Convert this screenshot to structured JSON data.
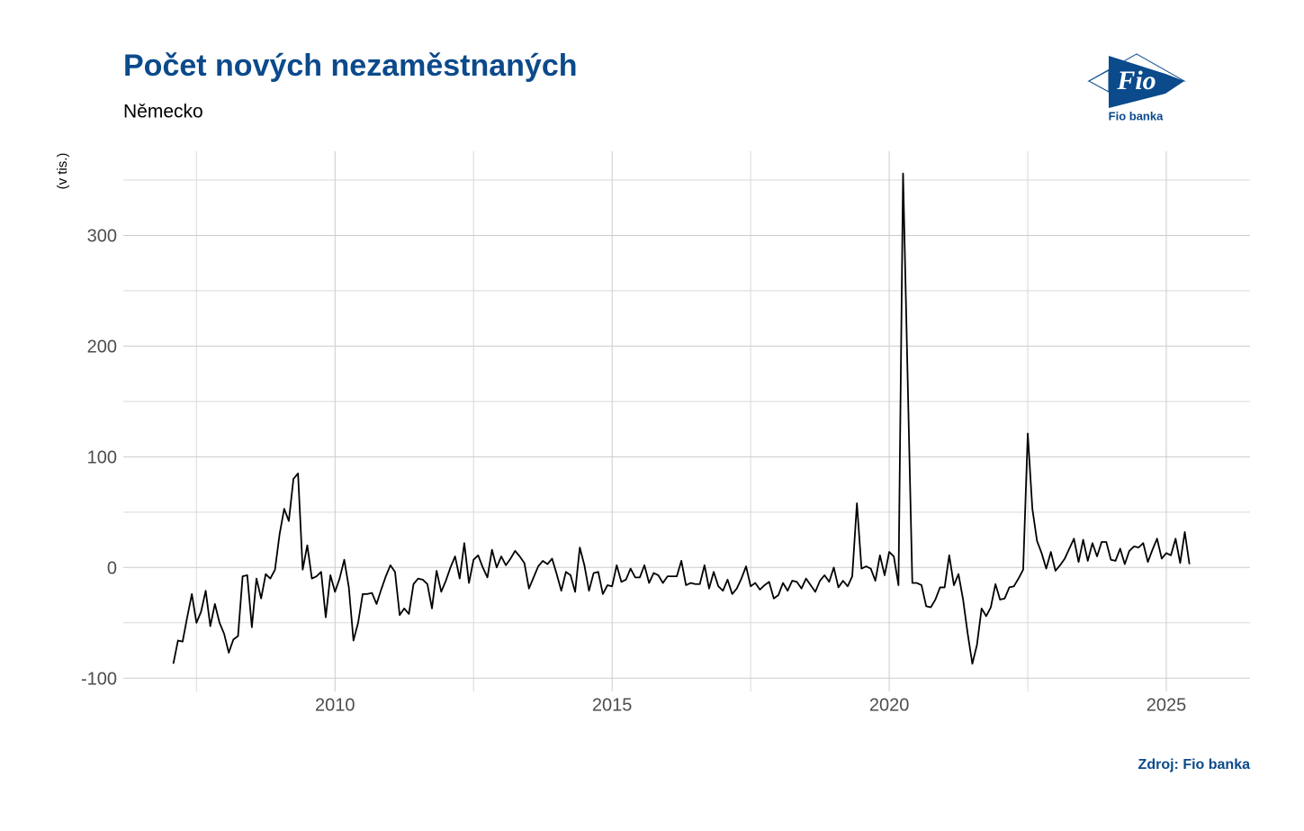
{
  "chart_data": {
    "type": "line",
    "title": "Počet nových nezaměstnaných",
    "subtitle": "Německo",
    "y_label": "(v tis.)",
    "source": "Zdroj: Fio banka",
    "color": "#000000",
    "grid": true,
    "xlim": [
      2006.18,
      2026.51
    ],
    "ylim": [
      -112,
      376
    ],
    "xticks": [
      2010,
      2015,
      2020,
      2025
    ],
    "xminorticks": [
      2007.5,
      2012.5,
      2017.5,
      2022.5
    ],
    "yticks": [
      -100,
      0,
      100,
      200,
      300
    ],
    "yminorticks": [
      -50,
      50,
      150,
      250,
      350
    ],
    "x": [
      2007.083,
      2007.167,
      2007.25,
      2007.333,
      2007.417,
      2007.5,
      2007.583,
      2007.667,
      2007.75,
      2007.833,
      2007.917,
      2008,
      2008.083,
      2008.167,
      2008.25,
      2008.333,
      2008.417,
      2008.5,
      2008.583,
      2008.667,
      2008.75,
      2008.833,
      2008.917,
      2009,
      2009.083,
      2009.167,
      2009.25,
      2009.333,
      2009.417,
      2009.5,
      2009.583,
      2009.667,
      2009.75,
      2009.833,
      2009.917,
      2010,
      2010.083,
      2010.167,
      2010.25,
      2010.333,
      2010.417,
      2010.5,
      2010.583,
      2010.667,
      2010.75,
      2010.833,
      2010.917,
      2011,
      2011.083,
      2011.167,
      2011.25,
      2011.333,
      2011.417,
      2011.5,
      2011.583,
      2011.667,
      2011.75,
      2011.833,
      2011.917,
      2012,
      2012.083,
      2012.167,
      2012.25,
      2012.333,
      2012.417,
      2012.5,
      2012.583,
      2012.667,
      2012.75,
      2012.833,
      2012.917,
      2013,
      2013.083,
      2013.167,
      2013.25,
      2013.333,
      2013.417,
      2013.5,
      2013.583,
      2013.667,
      2013.75,
      2013.833,
      2013.917,
      2014,
      2014.083,
      2014.167,
      2014.25,
      2014.333,
      2014.417,
      2014.5,
      2014.583,
      2014.667,
      2014.75,
      2014.833,
      2014.917,
      2015,
      2015.083,
      2015.167,
      2015.25,
      2015.333,
      2015.417,
      2015.5,
      2015.583,
      2015.667,
      2015.75,
      2015.833,
      2015.917,
      2016,
      2016.083,
      2016.167,
      2016.25,
      2016.333,
      2016.417,
      2016.5,
      2016.583,
      2016.667,
      2016.75,
      2016.833,
      2016.917,
      2017,
      2017.083,
      2017.167,
      2017.25,
      2017.333,
      2017.417,
      2017.5,
      2017.583,
      2017.667,
      2017.75,
      2017.833,
      2017.917,
      2018,
      2018.083,
      2018.167,
      2018.25,
      2018.333,
      2018.417,
      2018.5,
      2018.583,
      2018.667,
      2018.75,
      2018.833,
      2018.917,
      2019,
      2019.083,
      2019.167,
      2019.25,
      2019.333,
      2019.417,
      2019.5,
      2019.583,
      2019.667,
      2019.75,
      2019.833,
      2019.917,
      2020,
      2020.083,
      2020.167,
      2020.25,
      2020.333,
      2020.417,
      2020.5,
      2020.583,
      2020.667,
      2020.75,
      2020.833,
      2020.917,
      2021,
      2021.083,
      2021.167,
      2021.25,
      2021.333,
      2021.417,
      2021.5,
      2021.583,
      2021.667,
      2021.75,
      2021.833,
      2021.917,
      2022,
      2022.083,
      2022.167,
      2022.25,
      2022.333,
      2022.417,
      2022.5,
      2022.583,
      2022.667,
      2022.75,
      2022.833,
      2022.917,
      2023,
      2023.083,
      2023.167,
      2023.25,
      2023.333,
      2023.417,
      2023.5,
      2023.583,
      2023.667,
      2023.75,
      2023.833,
      2023.917,
      2024,
      2024.083,
      2024.167,
      2024.25,
      2024.333,
      2024.417,
      2024.5,
      2024.583,
      2024.667,
      2024.75,
      2024.833,
      2024.917,
      2025,
      2025.083,
      2025.167,
      2025.25,
      2025.333,
      2025.417
    ],
    "values": [
      -87,
      -66,
      -67,
      -45,
      -24,
      -50,
      -40,
      -21,
      -53,
      -33,
      -50,
      -60,
      -77,
      -65,
      -62,
      -8,
      -7,
      -54,
      -10,
      -28,
      -6,
      -10,
      -2,
      30,
      53,
      42,
      80,
      85,
      -2,
      20,
      -10,
      -8,
      -4,
      -45,
      -7,
      -22,
      -10,
      7,
      -18,
      -66,
      -50,
      -24,
      -24,
      -23,
      -33,
      -20,
      -8,
      2,
      -4,
      -43,
      -37,
      -42,
      -15,
      -10,
      -11,
      -15,
      -37,
      -3,
      -22,
      -12,
      0,
      10,
      -10,
      22,
      -14,
      7,
      11,
      0,
      -9,
      16,
      0,
      10,
      2,
      8,
      15,
      10,
      4,
      -19,
      -9,
      1,
      6,
      3,
      8,
      -6,
      -21,
      -4,
      -7,
      -22,
      18,
      2,
      -21,
      -5,
      -4,
      -24,
      -16,
      -17,
      2,
      -13,
      -11,
      -1,
      -9,
      -9,
      2,
      -14,
      -5,
      -7,
      -14,
      -8,
      -8,
      -8,
      6,
      -16,
      -14,
      -15,
      -15,
      2,
      -19,
      -4,
      -17,
      -21,
      -11,
      -24,
      -19,
      -10,
      1,
      -17,
      -14,
      -20,
      -16,
      -13,
      -28,
      -25,
      -14,
      -21,
      -12,
      -13,
      -19,
      -10,
      -16,
      -22,
      -12,
      -7,
      -13,
      0,
      -18,
      -12,
      -17,
      -8,
      58,
      -1,
      1,
      -1,
      -12,
      11,
      -7,
      14,
      10,
      -16,
      356,
      170,
      -14,
      -14,
      -16,
      -35,
      -36,
      -29,
      -18,
      -18,
      11,
      -16,
      -6,
      -29,
      -60,
      -87,
      -70,
      -37,
      -44,
      -36,
      -15,
      -29,
      -28,
      -18,
      -17,
      -10,
      -2,
      121,
      53,
      24,
      13,
      -1,
      14,
      -3,
      2,
      8,
      17,
      26,
      5,
      25,
      6,
      22,
      10,
      23,
      23,
      7,
      6,
      17,
      3,
      15,
      19,
      18,
      22,
      5,
      16,
      26,
      8,
      13,
      11,
      26,
      4,
      32,
      3
    ]
  },
  "logo": {
    "text": "Fio",
    "caption": "Fio banka"
  }
}
